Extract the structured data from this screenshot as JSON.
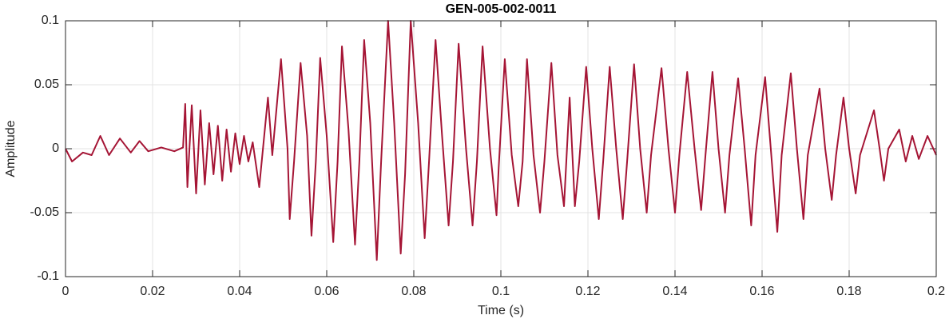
{
  "chart_data": {
    "type": "line",
    "title": "GEN-005-002-0011",
    "xlabel": "Time (s)",
    "ylabel": "Amplitude",
    "color": "#a51535",
    "grid": true,
    "xlim": [
      0,
      0.2
    ],
    "ylim": [
      -0.1,
      0.1
    ],
    "xticks": [
      0,
      0.02,
      0.04,
      0.06,
      0.08,
      0.1,
      0.12,
      0.14,
      0.16,
      0.18,
      0.2
    ],
    "yticks": [
      -0.1,
      -0.05,
      0,
      0.05,
      0.1
    ],
    "x": [
      0,
      0.0015,
      0.004,
      0.006,
      0.008,
      0.01,
      0.0125,
      0.015,
      0.017,
      0.019,
      0.022,
      0.025,
      0.027,
      0.0275,
      0.028,
      0.029,
      0.03,
      0.031,
      0.032,
      0.033,
      0.034,
      0.035,
      0.036,
      0.037,
      0.038,
      0.039,
      0.04,
      0.041,
      0.042,
      0.043,
      0.0445,
      0.0465,
      0.0475,
      0.0495,
      0.051,
      0.0515,
      0.0525,
      0.054,
      0.0555,
      0.0565,
      0.0575,
      0.0585,
      0.06,
      0.0615,
      0.0625,
      0.0635,
      0.065,
      0.0665,
      0.0675,
      0.0686,
      0.07,
      0.0715,
      0.0725,
      0.0741,
      0.0755,
      0.077,
      0.078,
      0.0793,
      0.081,
      0.0825,
      0.0835,
      0.085,
      0.0865,
      0.088,
      0.089,
      0.0903,
      0.092,
      0.0935,
      0.0945,
      0.0958,
      0.0975,
      0.099,
      0.0995,
      0.1009,
      0.1025,
      0.104,
      0.105,
      0.106,
      0.1075,
      0.109,
      0.11,
      0.1116,
      0.113,
      0.1145,
      0.1158,
      0.117,
      0.118,
      0.1196,
      0.121,
      0.1225,
      0.1235,
      0.125,
      0.1265,
      0.128,
      0.129,
      0.1306,
      0.132,
      0.1335,
      0.1345,
      0.1369,
      0.1385,
      0.14,
      0.141,
      0.1428,
      0.1445,
      0.146,
      0.147,
      0.1486,
      0.15,
      0.1515,
      0.1525,
      0.1545,
      0.156,
      0.1575,
      0.1585,
      0.1607,
      0.162,
      0.1635,
      0.1645,
      0.1666,
      0.168,
      0.1695,
      0.1705,
      0.1732,
      0.1745,
      0.176,
      0.177,
      0.1787,
      0.18,
      0.1815,
      0.1825,
      0.1857,
      0.187,
      0.188,
      0.189,
      0.1915,
      0.193,
      0.1945,
      0.196,
      0.198,
      0.2
    ],
    "values": [
      0,
      -0.01,
      -0.003,
      -0.005,
      0.01,
      -0.005,
      0.008,
      -0.003,
      0.006,
      -0.002,
      0.001,
      -0.002,
      0.001,
      0.035,
      -0.03,
      0.034,
      -0.035,
      0.03,
      -0.028,
      0.02,
      -0.02,
      0.018,
      -0.025,
      0.015,
      -0.018,
      0.012,
      -0.012,
      0.01,
      -0.01,
      0.005,
      -0.03,
      0.04,
      -0.005,
      0.07,
      0,
      -0.055,
      -0.01,
      0.067,
      0.01,
      -0.068,
      -0.01,
      0.071,
      0.01,
      -0.073,
      -0.01,
      0.08,
      0.015,
      -0.075,
      -0.01,
      0.085,
      0.02,
      -0.087,
      -0.01,
      0.1,
      0.02,
      -0.082,
      -0.02,
      0.1,
      0.02,
      -0.07,
      -0.01,
      0.085,
      0.01,
      -0.06,
      -0.01,
      0.082,
      0,
      -0.06,
      -0.01,
      0.08,
      0,
      -0.052,
      -0.015,
      0.07,
      -0.005,
      -0.045,
      -0.01,
      0.07,
      -0.005,
      -0.05,
      -0.01,
      0.067,
      -0.005,
      -0.045,
      0.04,
      -0.045,
      -0.01,
      0.064,
      0,
      -0.055,
      -0.01,
      0.064,
      0,
      -0.055,
      -0.01,
      0.066,
      0,
      -0.05,
      -0.005,
      0.063,
      0,
      -0.05,
      -0.005,
      0.06,
      0,
      -0.048,
      -0.005,
      0.06,
      0,
      -0.05,
      -0.005,
      0.055,
      0,
      -0.06,
      -0.005,
      0.056,
      0,
      -0.065,
      -0.005,
      0.059,
      0,
      -0.055,
      -0.005,
      0.047,
      0,
      -0.04,
      -0.005,
      0.04,
      0,
      -0.035,
      -0.005,
      0.03,
      0,
      -0.025,
      0,
      0.015,
      -0.01,
      0.01,
      -0.008,
      0.01,
      -0.005
    ]
  }
}
